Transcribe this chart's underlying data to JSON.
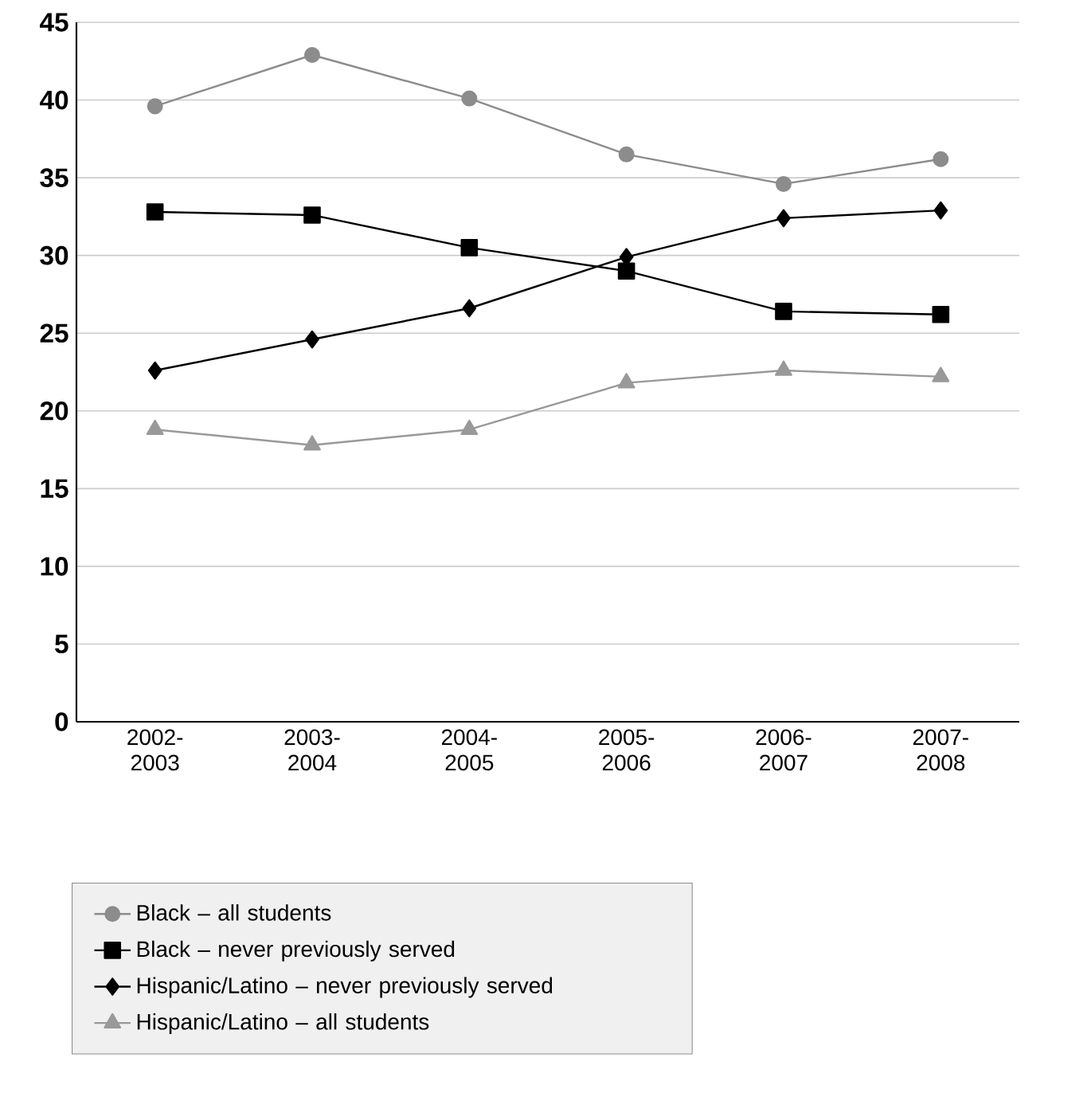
{
  "chart_data": {
    "type": "line",
    "categories": [
      "2002-2003",
      "2003-2004",
      "2004-2005",
      "2005-2006",
      "2006-2007",
      "2007-2008"
    ],
    "series": [
      {
        "name": "Black – all students",
        "color": "#8c8c8c",
        "marker": "circle",
        "values": [
          39.6,
          42.9,
          40.1,
          36.5,
          34.6,
          36.2
        ]
      },
      {
        "name": "Black – never previously served",
        "color": "#000000",
        "marker": "square",
        "values": [
          32.8,
          32.6,
          30.5,
          29.0,
          26.4,
          26.2
        ]
      },
      {
        "name": "Hispanic/Latino – never previously served",
        "color": "#000000",
        "marker": "diamond",
        "values": [
          22.6,
          24.6,
          26.6,
          29.9,
          32.4,
          32.9
        ]
      },
      {
        "name": "Hispanic/Latino – all students",
        "color": "#999999",
        "marker": "triangle",
        "values": [
          18.8,
          17.8,
          18.8,
          21.8,
          22.6,
          22.2
        ]
      }
    ],
    "ylim": [
      0,
      45
    ],
    "yticks": [
      0,
      5,
      10,
      15,
      20,
      25,
      30,
      35,
      40,
      45
    ],
    "grid": "y",
    "legend": "bottom left",
    "line_style": "solid"
  }
}
